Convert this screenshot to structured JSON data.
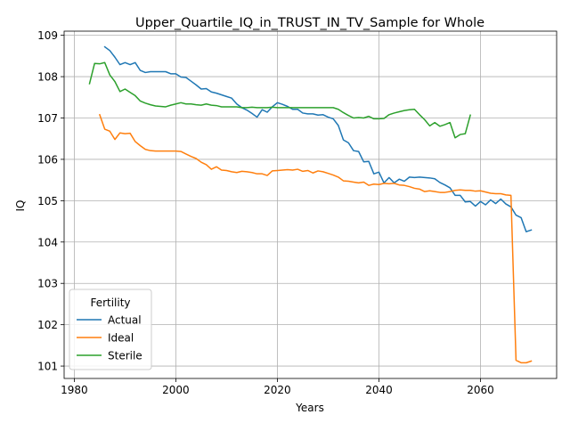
{
  "chart_data": {
    "type": "line",
    "title": "Upper_Quartile_IQ_in_TRUST_IN_TV_Sample for Whole",
    "xlabel": "Years",
    "ylabel": "IQ",
    "xlim": [
      1978,
      2075
    ],
    "ylim": [
      100.7,
      109.1
    ],
    "x_ticks": [
      1980,
      2000,
      2020,
      2040,
      2060
    ],
    "y_ticks": [
      101,
      102,
      103,
      104,
      105,
      106,
      107,
      108,
      109
    ],
    "grid": true,
    "legend": {
      "title": "Fertility",
      "placement": "lower-left"
    },
    "series": [
      {
        "name": "Actual",
        "color": "#1f77b4",
        "points": [
          [
            1986,
            108.72
          ],
          [
            1987,
            108.63
          ],
          [
            1988,
            108.47
          ],
          [
            1989,
            108.29
          ],
          [
            1990,
            108.34
          ],
          [
            1991,
            108.29
          ],
          [
            1992,
            108.34
          ],
          [
            1993,
            108.15
          ],
          [
            1994,
            108.1
          ],
          [
            1995,
            108.12
          ],
          [
            1996,
            108.12
          ],
          [
            1997,
            108.12
          ],
          [
            1998,
            108.12
          ],
          [
            1999,
            108.07
          ],
          [
            2000,
            108.07
          ],
          [
            2001,
            107.99
          ],
          [
            2002,
            107.98
          ],
          [
            2003,
            107.89
          ],
          [
            2004,
            107.8
          ],
          [
            2005,
            107.7
          ],
          [
            2006,
            107.71
          ],
          [
            2007,
            107.63
          ],
          [
            2008,
            107.6
          ],
          [
            2009,
            107.56
          ],
          [
            2010,
            107.52
          ],
          [
            2011,
            107.48
          ],
          [
            2012,
            107.34
          ],
          [
            2013,
            107.25
          ],
          [
            2014,
            107.19
          ],
          [
            2015,
            107.11
          ],
          [
            2016,
            107.02
          ],
          [
            2017,
            107.2
          ],
          [
            2018,
            107.14
          ],
          [
            2019,
            107.27
          ],
          [
            2020,
            107.37
          ],
          [
            2021,
            107.33
          ],
          [
            2022,
            107.28
          ],
          [
            2023,
            107.21
          ],
          [
            2024,
            107.21
          ],
          [
            2025,
            107.12
          ],
          [
            2026,
            107.1
          ],
          [
            2027,
            107.1
          ],
          [
            2028,
            107.07
          ],
          [
            2029,
            107.08
          ],
          [
            2030,
            107.02
          ],
          [
            2031,
            106.98
          ],
          [
            2032,
            106.82
          ],
          [
            2033,
            106.47
          ],
          [
            2034,
            106.4
          ],
          [
            2035,
            106.21
          ],
          [
            2036,
            106.19
          ],
          [
            2037,
            105.94
          ],
          [
            2038,
            105.95
          ],
          [
            2039,
            105.65
          ],
          [
            2040,
            105.69
          ],
          [
            2041,
            105.43
          ],
          [
            2042,
            105.56
          ],
          [
            2043,
            105.43
          ],
          [
            2044,
            105.52
          ],
          [
            2045,
            105.47
          ],
          [
            2046,
            105.57
          ],
          [
            2047,
            105.56
          ],
          [
            2048,
            105.57
          ],
          [
            2049,
            105.56
          ],
          [
            2050,
            105.55
          ],
          [
            2051,
            105.53
          ],
          [
            2052,
            105.44
          ],
          [
            2053,
            105.38
          ],
          [
            2054,
            105.31
          ],
          [
            2055,
            105.13
          ],
          [
            2056,
            105.13
          ],
          [
            2057,
            104.97
          ],
          [
            2058,
            104.98
          ],
          [
            2059,
            104.87
          ],
          [
            2060,
            104.98
          ],
          [
            2061,
            104.9
          ],
          [
            2062,
            105.02
          ],
          [
            2063,
            104.93
          ],
          [
            2064,
            105.04
          ],
          [
            2065,
            104.92
          ],
          [
            2066,
            104.85
          ],
          [
            2067,
            104.65
          ],
          [
            2068,
            104.59
          ],
          [
            2069,
            104.25
          ],
          [
            2070,
            104.29
          ]
        ]
      },
      {
        "name": "Ideal",
        "color": "#ff7f0e",
        "points": [
          [
            1985,
            107.08
          ],
          [
            1986,
            106.73
          ],
          [
            1987,
            106.68
          ],
          [
            1988,
            106.48
          ],
          [
            1989,
            106.64
          ],
          [
            1990,
            106.62
          ],
          [
            1991,
            106.63
          ],
          [
            1992,
            106.43
          ],
          [
            1993,
            106.33
          ],
          [
            1994,
            106.24
          ],
          [
            1995,
            106.21
          ],
          [
            1996,
            106.2
          ],
          [
            1997,
            106.2
          ],
          [
            1998,
            106.2
          ],
          [
            1999,
            106.2
          ],
          [
            2000,
            106.2
          ],
          [
            2001,
            106.19
          ],
          [
            2002,
            106.13
          ],
          [
            2003,
            106.07
          ],
          [
            2004,
            106.02
          ],
          [
            2005,
            105.93
          ],
          [
            2006,
            105.87
          ],
          [
            2007,
            105.76
          ],
          [
            2008,
            105.82
          ],
          [
            2009,
            105.74
          ],
          [
            2010,
            105.73
          ],
          [
            2011,
            105.7
          ],
          [
            2012,
            105.68
          ],
          [
            2013,
            105.71
          ],
          [
            2014,
            105.7
          ],
          [
            2015,
            105.68
          ],
          [
            2016,
            105.65
          ],
          [
            2017,
            105.65
          ],
          [
            2018,
            105.61
          ],
          [
            2019,
            105.72
          ],
          [
            2020,
            105.73
          ],
          [
            2021,
            105.74
          ],
          [
            2022,
            105.75
          ],
          [
            2023,
            105.74
          ],
          [
            2024,
            105.76
          ],
          [
            2025,
            105.71
          ],
          [
            2026,
            105.73
          ],
          [
            2027,
            105.67
          ],
          [
            2028,
            105.72
          ],
          [
            2029,
            105.7
          ],
          [
            2030,
            105.66
          ],
          [
            2031,
            105.62
          ],
          [
            2032,
            105.57
          ],
          [
            2033,
            105.48
          ],
          [
            2034,
            105.47
          ],
          [
            2035,
            105.45
          ],
          [
            2036,
            105.43
          ],
          [
            2037,
            105.45
          ],
          [
            2038,
            105.37
          ],
          [
            2039,
            105.4
          ],
          [
            2040,
            105.39
          ],
          [
            2041,
            105.42
          ],
          [
            2042,
            105.41
          ],
          [
            2043,
            105.42
          ],
          [
            2044,
            105.38
          ],
          [
            2045,
            105.37
          ],
          [
            2046,
            105.34
          ],
          [
            2047,
            105.3
          ],
          [
            2048,
            105.28
          ],
          [
            2049,
            105.22
          ],
          [
            2050,
            105.24
          ],
          [
            2051,
            105.22
          ],
          [
            2052,
            105.2
          ],
          [
            2053,
            105.2
          ],
          [
            2054,
            105.22
          ],
          [
            2055,
            105.25
          ],
          [
            2056,
            105.26
          ],
          [
            2057,
            105.25
          ],
          [
            2058,
            105.25
          ],
          [
            2059,
            105.23
          ],
          [
            2060,
            105.24
          ],
          [
            2061,
            105.21
          ],
          [
            2062,
            105.18
          ],
          [
            2063,
            105.17
          ],
          [
            2064,
            105.17
          ],
          [
            2065,
            105.14
          ],
          [
            2066,
            105.13
          ],
          [
            2067,
            101.14
          ],
          [
            2068,
            101.08
          ],
          [
            2069,
            101.08
          ],
          [
            2070,
            101.12
          ]
        ]
      },
      {
        "name": "Sterile",
        "color": "#2ca02c",
        "points": [
          [
            1983,
            107.83
          ],
          [
            1984,
            108.32
          ],
          [
            1985,
            108.31
          ],
          [
            1986,
            108.34
          ],
          [
            1987,
            108.04
          ],
          [
            1988,
            107.88
          ],
          [
            1989,
            107.64
          ],
          [
            1990,
            107.7
          ],
          [
            1991,
            107.62
          ],
          [
            1992,
            107.54
          ],
          [
            1993,
            107.41
          ],
          [
            1994,
            107.36
          ],
          [
            1995,
            107.32
          ],
          [
            1996,
            107.29
          ],
          [
            1997,
            107.28
          ],
          [
            1998,
            107.27
          ],
          [
            1999,
            107.31
          ],
          [
            2000,
            107.34
          ],
          [
            2001,
            107.37
          ],
          [
            2002,
            107.34
          ],
          [
            2003,
            107.34
          ],
          [
            2004,
            107.32
          ],
          [
            2005,
            107.31
          ],
          [
            2006,
            107.34
          ],
          [
            2007,
            107.31
          ],
          [
            2008,
            107.3
          ],
          [
            2009,
            107.27
          ],
          [
            2010,
            107.27
          ],
          [
            2011,
            107.27
          ],
          [
            2012,
            107.27
          ],
          [
            2013,
            107.25
          ],
          [
            2014,
            107.25
          ],
          [
            2015,
            107.26
          ],
          [
            2016,
            107.25
          ],
          [
            2017,
            107.25
          ],
          [
            2018,
            107.25
          ],
          [
            2019,
            107.26
          ],
          [
            2020,
            107.25
          ],
          [
            2021,
            107.25
          ],
          [
            2022,
            107.25
          ],
          [
            2023,
            107.25
          ],
          [
            2024,
            107.25
          ],
          [
            2025,
            107.25
          ],
          [
            2026,
            107.25
          ],
          [
            2027,
            107.25
          ],
          [
            2028,
            107.25
          ],
          [
            2029,
            107.25
          ],
          [
            2030,
            107.25
          ],
          [
            2031,
            107.25
          ],
          [
            2032,
            107.21
          ],
          [
            2033,
            107.13
          ],
          [
            2034,
            107.06
          ],
          [
            2035,
            107.0
          ],
          [
            2036,
            107.01
          ],
          [
            2037,
            107.0
          ],
          [
            2038,
            107.04
          ],
          [
            2039,
            106.98
          ],
          [
            2040,
            106.98
          ],
          [
            2041,
            106.99
          ],
          [
            2042,
            107.08
          ],
          [
            2043,
            107.12
          ],
          [
            2044,
            107.15
          ],
          [
            2045,
            107.18
          ],
          [
            2046,
            107.2
          ],
          [
            2047,
            107.21
          ],
          [
            2048,
            107.08
          ],
          [
            2049,
            106.96
          ],
          [
            2050,
            106.81
          ],
          [
            2051,
            106.89
          ],
          [
            2052,
            106.8
          ],
          [
            2053,
            106.84
          ],
          [
            2054,
            106.89
          ],
          [
            2055,
            106.52
          ],
          [
            2056,
            106.6
          ],
          [
            2057,
            106.62
          ],
          [
            2058,
            107.07
          ]
        ]
      }
    ]
  }
}
